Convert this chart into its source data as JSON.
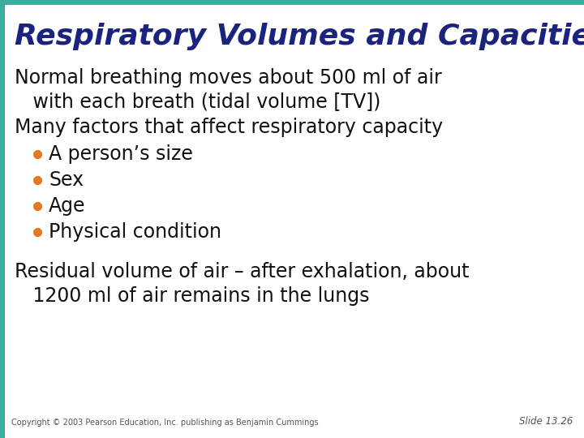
{
  "title": "Respiratory Volumes and Capacities",
  "title_color": "#1a237e",
  "title_fontsize": 26,
  "title_fontstyle": "italic",
  "title_fontweight": "bold",
  "background_color": "#ffffff",
  "top_bar_color": "#3aada0",
  "left_bar_color": "#3aada0",
  "body_text_color": "#111111",
  "body_fontsize": 17,
  "bullet_color": "#e87722",
  "copyright_text": "Copyright © 2003 Pearson Education, Inc. publishing as Benjamin Cummings",
  "slide_label": "Slide 13.26",
  "para1_line1": "Normal breathing moves about 500 ml of air",
  "para1_line2": "   with each breath (tidal volume [TV])",
  "para2": "Many factors that affect respiratory capacity",
  "bullets": [
    "A person’s size",
    "Sex",
    "Age",
    "Physical condition"
  ],
  "para3_line1": "Residual volume of air – after exhalation, about",
  "para3_line2": "   1200 ml of air remains in the lungs"
}
